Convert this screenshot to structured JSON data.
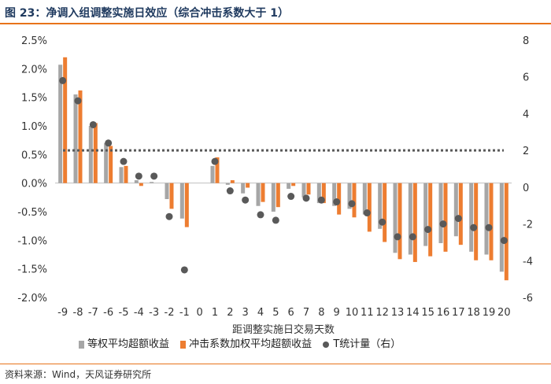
{
  "header": {
    "title": "图 23：净调入组调整实施日效应（综合冲击系数大于 1）"
  },
  "footer": {
    "source": "资料来源：Wind，天风证券研究所"
  },
  "colors": {
    "series1": "#a6a6a6",
    "series2": "#ed7d31",
    "series3": "#595959",
    "threshold": "#595959",
    "accent": "#e8731a"
  },
  "chart_data": {
    "type": "bar",
    "xlabel": "距调整实施日交易天数",
    "categories": [
      "-9",
      "-8",
      "-7",
      "-6",
      "-5",
      "-4",
      "-3",
      "-2",
      "-1",
      "0",
      "1",
      "2",
      "3",
      "4",
      "5",
      "6",
      "7",
      "8",
      "9",
      "10",
      "11",
      "12",
      "13",
      "14",
      "15",
      "16",
      "17",
      "18",
      "19",
      "20"
    ],
    "y_left": {
      "range": [
        -2.0,
        2.5
      ],
      "ticks": [
        "2.5%",
        "2.0%",
        "1.5%",
        "1.0%",
        "0.5%",
        "0.0%",
        "-0.5%",
        "-1.0%",
        "-1.5%",
        "-2.0%"
      ],
      "tick_values": [
        2.5,
        2.0,
        1.5,
        1.0,
        0.5,
        0.0,
        -0.5,
        -1.0,
        -1.5,
        -2.0
      ]
    },
    "y_right": {
      "range": [
        -6,
        8
      ],
      "ticks": [
        "8",
        "6",
        "4",
        "2",
        "0",
        "-2",
        "-4",
        "-6"
      ],
      "tick_values": [
        8,
        6,
        4,
        2,
        0,
        -2,
        -4,
        -6
      ]
    },
    "threshold_line": {
      "value": 2,
      "axis": "right",
      "style": "dotted"
    },
    "series": [
      {
        "name": "等权平均超额收益",
        "axis": "left",
        "type": "bar",
        "values": [
          2.07,
          1.55,
          1.0,
          0.7,
          0.28,
          0.05,
          0.02,
          -0.28,
          -0.62,
          0.0,
          0.3,
          -0.03,
          -0.18,
          -0.4,
          -0.5,
          -0.1,
          -0.25,
          -0.35,
          -0.4,
          -0.45,
          -0.55,
          -0.8,
          -1.22,
          -1.25,
          -1.1,
          -1.05,
          -0.93,
          -1.2,
          -1.25,
          -1.55
        ]
      },
      {
        "name": "冲击系数加权平均超额收益",
        "axis": "left",
        "type": "bar",
        "values": [
          2.2,
          1.62,
          1.05,
          0.65,
          0.3,
          -0.05,
          0.0,
          -0.45,
          -0.77,
          0.0,
          0.45,
          0.05,
          -0.08,
          -0.33,
          -0.42,
          -0.05,
          -0.2,
          -0.35,
          -0.55,
          -0.6,
          -0.85,
          -1.03,
          -1.33,
          -1.38,
          -1.28,
          -1.2,
          -1.08,
          -1.35,
          -1.35,
          -1.7
        ]
      },
      {
        "name": "T统计量（右）",
        "axis": "right",
        "type": "scatter",
        "values": [
          5.8,
          4.7,
          3.4,
          2.4,
          1.4,
          0.6,
          0.6,
          -1.6,
          -4.5,
          null,
          1.4,
          -0.2,
          -0.7,
          -1.5,
          -1.8,
          -0.5,
          -0.6,
          -0.7,
          -0.8,
          -0.9,
          -1.4,
          -1.9,
          -2.7,
          -2.7,
          -2.3,
          -2.0,
          -1.7,
          -2.2,
          -2.2,
          -2.9
        ]
      }
    ]
  }
}
